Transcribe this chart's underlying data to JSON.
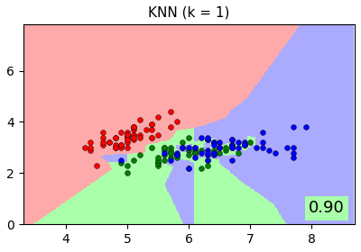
{
  "title": "KNN (k = 1)",
  "accuracy_text": "0.90",
  "k": 1,
  "xlim": [
    3.3,
    8.7
  ],
  "ylim": [
    0.0,
    7.8
  ],
  "bg_colors": [
    "#FFAAAA",
    "#AAFFAA",
    "#AAAAFF"
  ],
  "point_colors": [
    "red",
    "green",
    "blue"
  ],
  "figsize": [
    4.0,
    2.8
  ],
  "dpi": 100,
  "random_state": 0,
  "n_neighbors": 1,
  "test_size": 0.3
}
